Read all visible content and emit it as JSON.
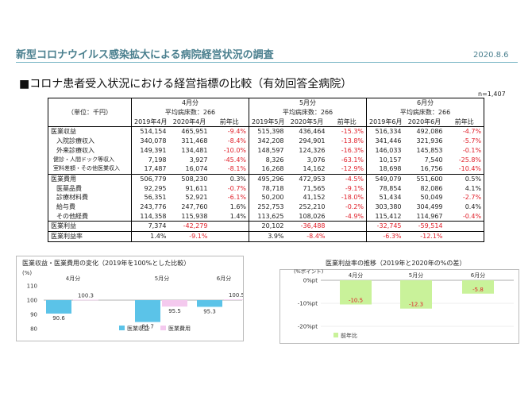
{
  "header": {
    "title": "新型コロナウイルス感染拡大による病院経営状況の調査",
    "date": "2020.8.6",
    "subtitle": "■コロナ患者受入状況における経営指標の比較（有効回答全病院）",
    "n_note": "n=1,407"
  },
  "table": {
    "unit_label": "（単位：千円）",
    "months": [
      {
        "label": "4月分",
        "beds": "平均病床数：266",
        "cols": [
          "2019年4月",
          "2020年4月",
          "前年比"
        ]
      },
      {
        "label": "5月分",
        "beds": "平均病床数：266",
        "cols": [
          "2019年5月",
          "2020年5月",
          "前年比"
        ]
      },
      {
        "label": "6月分",
        "beds": "平均病床数：266",
        "cols": [
          "2019年6月",
          "2020年6月",
          "前年比"
        ]
      }
    ],
    "rows": [
      {
        "label": "医業収益",
        "style": "main",
        "values": [
          "514,154",
          "465,951",
          "-9.4%",
          "515,398",
          "436,464",
          "-15.3%",
          "516,334",
          "492,086",
          "-4.7%"
        ]
      },
      {
        "label": "入院診療収入",
        "style": "sub",
        "values": [
          "340,078",
          "311,468",
          "-8.4%",
          "342,208",
          "294,901",
          "-13.8%",
          "341,446",
          "321,936",
          "-5.7%"
        ]
      },
      {
        "label": "外来診療収入",
        "style": "sub",
        "values": [
          "149,391",
          "134,481",
          "-10.0%",
          "148,597",
          "124,326",
          "-16.3%",
          "146,033",
          "145,853",
          "-0.1%"
        ]
      },
      {
        "label": "健診・人間ドック等収入",
        "style": "sub2",
        "values": [
          "7,198",
          "3,927",
          "-45.4%",
          "8,326",
          "3,076",
          "-63.1%",
          "10,157",
          "7,540",
          "-25.8%"
        ]
      },
      {
        "label": "室料差額・その他医業収入",
        "style": "sub2",
        "values": [
          "17,487",
          "16,074",
          "-8.1%",
          "16,268",
          "14,162",
          "-12.9%",
          "18,698",
          "16,756",
          "-10.4%"
        ]
      },
      {
        "label": "医業費用",
        "style": "main",
        "values": [
          "506,779",
          "508,230",
          "0.3%",
          "495,296",
          "472,953",
          "-4.5%",
          "549,079",
          "551,600",
          "0.5%"
        ]
      },
      {
        "label": "医薬品費",
        "style": "sub",
        "values": [
          "92,295",
          "91,611",
          "-0.7%",
          "78,718",
          "71,565",
          "-9.1%",
          "78,854",
          "82,086",
          "4.1%"
        ]
      },
      {
        "label": "診療材料費",
        "style": "sub",
        "values": [
          "56,351",
          "52,921",
          "-6.1%",
          "50,200",
          "41,152",
          "-18.0%",
          "51,434",
          "50,049",
          "-2.7%"
        ]
      },
      {
        "label": "給与費",
        "style": "sub",
        "values": [
          "243,776",
          "247,760",
          "1.6%",
          "252,753",
          "252,210",
          "-0.2%",
          "303,380",
          "304,499",
          "0.4%"
        ]
      },
      {
        "label": "その他経費",
        "style": "sub",
        "values": [
          "114,358",
          "115,938",
          "1.4%",
          "113,625",
          "108,026",
          "-4.9%",
          "115,412",
          "114,967",
          "-0.4%"
        ]
      },
      {
        "label": "医業利益",
        "style": "main",
        "values": [
          "7,374",
          "-42,279",
          "",
          "20,102",
          "-36,488",
          "",
          "-32,745",
          "-59,514",
          ""
        ]
      },
      {
        "label": "医業利益率",
        "style": "main",
        "values": [
          "1.4%",
          "-9.1%",
          "",
          "3.9%",
          "-8.4%",
          "",
          "-6.3%",
          "-12.1%",
          ""
        ]
      }
    ]
  },
  "chart_data": [
    {
      "type": "bar",
      "title": "医業収益・医業費用の変化（2019年を100%とした比較）",
      "ylabel": "(%)",
      "categories": [
        "4月分",
        "5月分",
        "6月分"
      ],
      "series": [
        {
          "name": "医業収益",
          "values": [
            90.6,
            84.7,
            95.3
          ]
        },
        {
          "name": "医業費用",
          "values": [
            100.3,
            95.5,
            100.5
          ]
        }
      ],
      "ylim": [
        80,
        110
      ],
      "yticks": [
        "110",
        "100",
        "90",
        "80"
      ],
      "base": 100,
      "colors": [
        "#5bc3e8",
        "#f4c9ee"
      ]
    },
    {
      "type": "bar",
      "title": "医業利益率の推移（2019年と2020年の%の差）",
      "ylabel": "(%ポイント)",
      "categories": [
        "4月分",
        "5月分",
        "6月分"
      ],
      "series": [
        {
          "name": "前年比",
          "values": [
            -10.5,
            -12.3,
            -5.8
          ]
        }
      ],
      "ylim": [
        -20,
        0
      ],
      "yticks": [
        "0%pt",
        "-10%pt",
        "-20%pt"
      ],
      "colors": [
        "#c9f29a"
      ]
    }
  ]
}
